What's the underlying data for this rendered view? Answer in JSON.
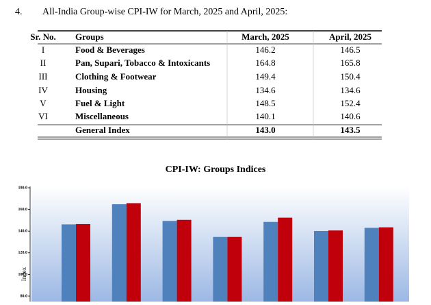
{
  "section": {
    "number": "4.",
    "heading": "All-India Group-wise CPI-IW for March, 2025 and April, 2025:"
  },
  "table": {
    "header": [
      "Sr. No.",
      "Groups",
      "March, 2025",
      "April, 2025"
    ],
    "rows": [
      [
        "I",
        "Food & Beverages",
        "146.2",
        "146.5"
      ],
      [
        "II",
        "Pan, Supari, Tobacco & Intoxicants",
        "164.8",
        "165.8"
      ],
      [
        "III",
        "Clothing & Footwear",
        "149.4",
        "150.4"
      ],
      [
        "IV",
        "Housing",
        "134.6",
        "134.6"
      ],
      [
        "V",
        "Fuel & Light",
        "148.5",
        "152.4"
      ],
      [
        "VI",
        "Miscellaneous",
        "140.1",
        "140.6"
      ]
    ],
    "total": [
      "General Index",
      "143.0",
      "143.5"
    ]
  },
  "chart": {
    "type": "bar",
    "title": "CPI-IW: Groups Indices",
    "y_label": "Index",
    "categories": [
      null,
      null,
      null,
      null,
      null,
      null,
      null
    ],
    "series": [
      {
        "color": "#4f81bd",
        "values": [
          146.2,
          164.8,
          149.4,
          134.6,
          148.5,
          140.1,
          143.0
        ]
      },
      {
        "color": "#c0000b",
        "values": [
          146.5,
          165.8,
          150.4,
          134.6,
          152.4,
          140.6,
          143.5
        ]
      }
    ],
    "ylim": [
      80,
      180
    ],
    "yticks": [
      {
        "value": 80,
        "label": "80.0"
      },
      {
        "value": 100,
        "label": "100.0"
      },
      {
        "value": 120,
        "label": "120.0"
      },
      {
        "value": 140,
        "label": "140.0"
      },
      {
        "value": 160,
        "label": "160.0"
      },
      {
        "value": 180,
        "label": "180.0"
      }
    ]
  }
}
